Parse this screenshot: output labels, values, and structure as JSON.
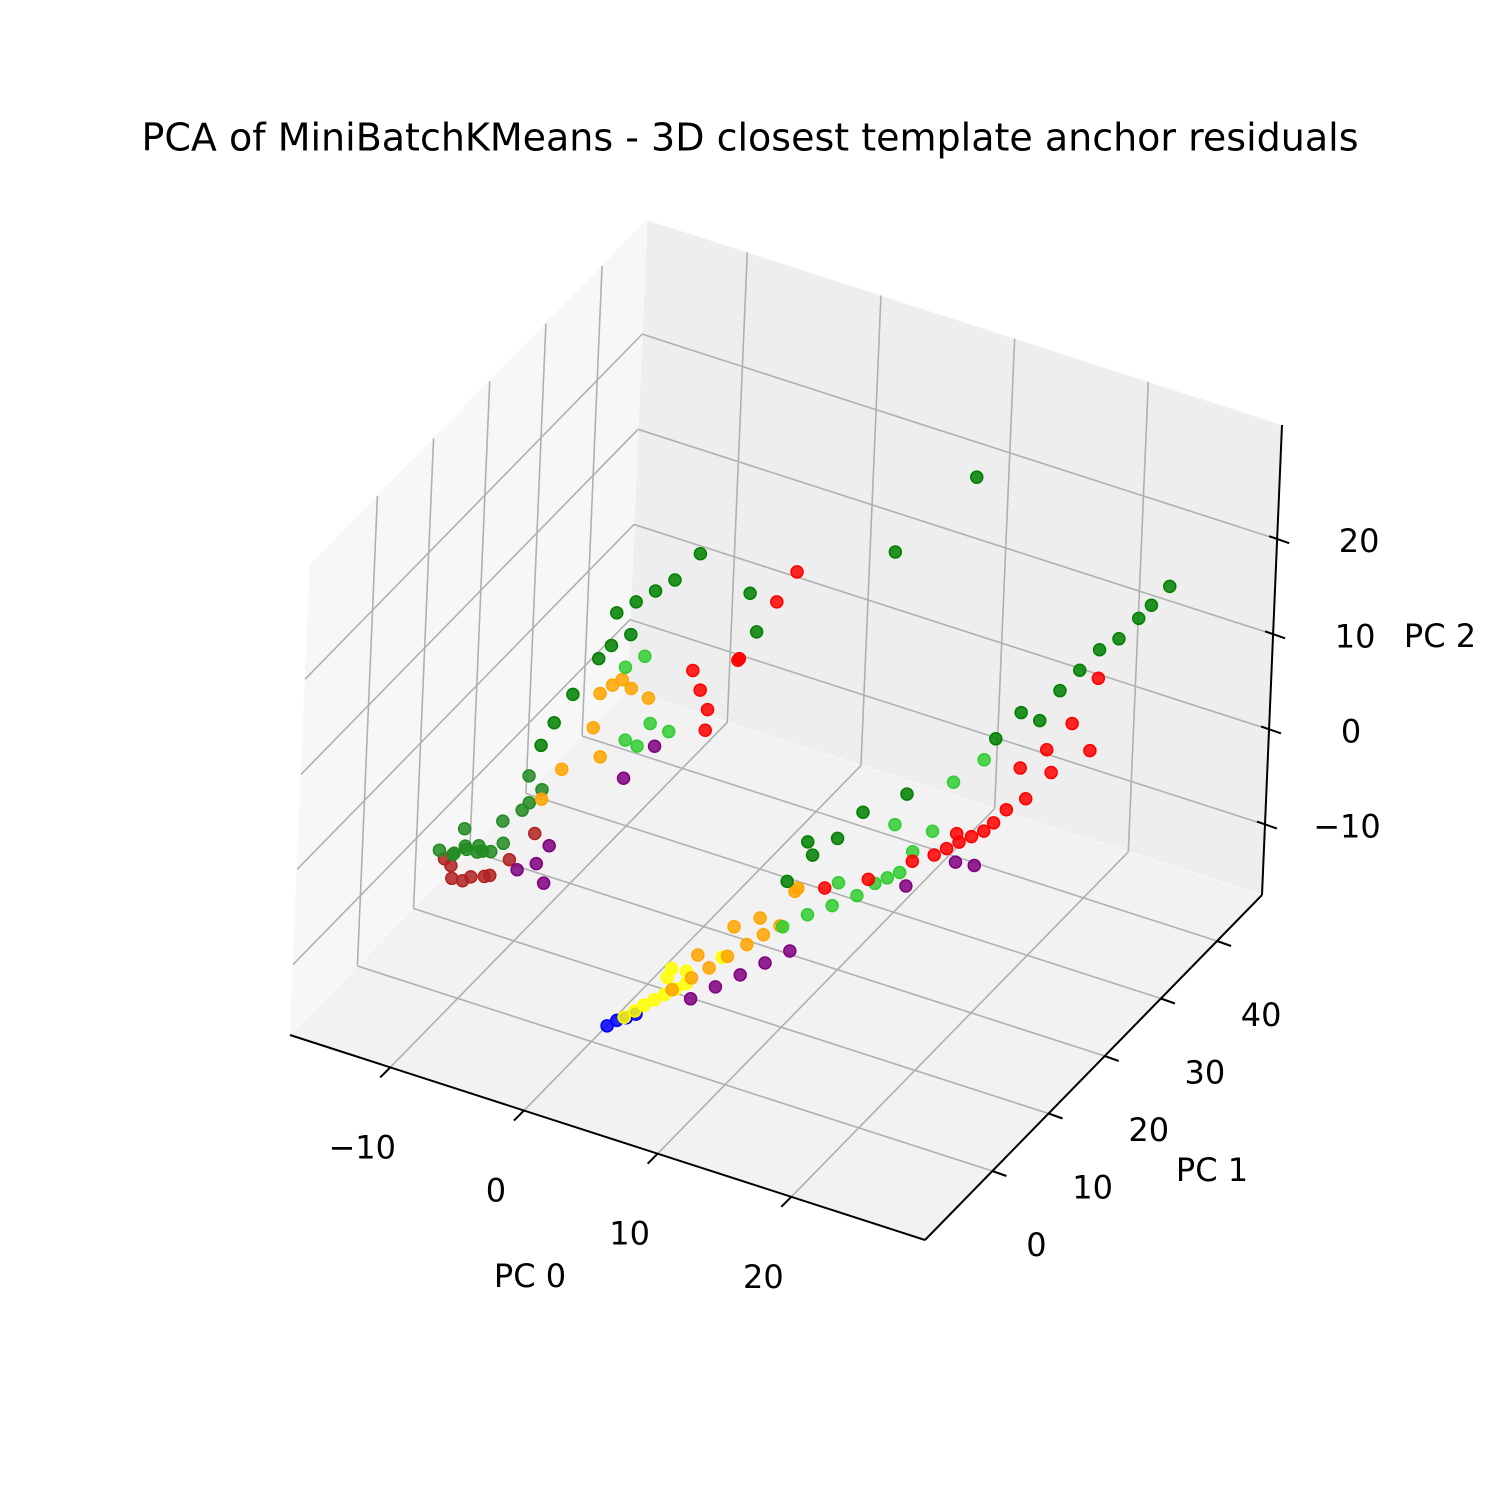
{
  "chart_data": {
    "type": "scatter3d",
    "title": "PCA of MiniBatchKMeans - 3D closest template anchor residuals",
    "x_label": "PC 0",
    "y_label": "PC 1",
    "z_label": "PC 2",
    "xlim": [
      -17.5,
      30
    ],
    "ylim": [
      -12,
      48
    ],
    "zlim": [
      -17.4,
      32
    ],
    "xticks": [
      {
        "value": -10,
        "label": "−10"
      },
      0,
      10,
      20
    ],
    "yticks": [
      0,
      10,
      20,
      30,
      40
    ],
    "zticks": [
      {
        "value": -10,
        "label": "−10"
      },
      0,
      10,
      20
    ],
    "grid": true,
    "series": [
      {
        "color": "firebrick",
        "x": [
          -12,
          -11,
          -10,
          -12.5,
          -11,
          -13,
          -10,
          -9,
          -8
        ],
        "y": [
          3,
          4,
          4,
          4,
          2.5,
          4,
          5,
          6,
          8
        ],
        "z": [
          -7.5,
          -7.5,
          -7,
          -7,
          -7,
          -6.5,
          -7.5,
          -6,
          -4
        ]
      },
      {
        "color": "forestgreen",
        "x": [
          -12,
          -11.5,
          -11,
          -10.5,
          -12.5,
          -10,
          -11,
          -12,
          -9.5,
          -10,
          -9,
          -8,
          -8.5,
          -13,
          -11,
          -9
        ],
        "y": [
          3,
          4,
          5,
          4,
          4.5,
          5,
          3,
          5,
          6,
          7,
          8,
          9,
          8,
          3,
          6,
          9
        ],
        "z": [
          -5,
          -4.5,
          -5.5,
          -4,
          -6,
          -5,
          -4,
          -3.5,
          -4.5,
          -3,
          -2,
          0,
          -1,
          -5,
          -6,
          1
        ]
      },
      {
        "color": "blue",
        "x": [
          2.5,
          3,
          3.5,
          4
        ],
        "y": [
          -3.5,
          -3,
          -2.5,
          -2
        ],
        "z": [
          -12.5,
          -12,
          -11.8,
          -11.5
        ]
      },
      {
        "color": "purple",
        "x": [
          6,
          7,
          8,
          9,
          10,
          14,
          16,
          17,
          -8,
          -7,
          -6,
          -6.5,
          -4,
          -3
        ],
        "y": [
          3,
          5,
          7,
          9,
          11,
          22,
          26,
          27,
          5,
          6,
          5,
          7,
          14,
          17
        ],
        "z": [
          -12,
          -11.5,
          -11,
          -10.5,
          -10,
          -8,
          -7,
          -7.5,
          -6,
          -5.5,
          -6.5,
          -4,
          0,
          2
        ]
      },
      {
        "color": "yellow",
        "x": [
          3.3,
          3.7,
          4.0,
          4.4,
          4.8,
          5.2,
          5.6,
          5,
          6,
          4.5,
          7
        ],
        "y": [
          -2.4,
          -1.5,
          -0.6,
          0.3,
          1.2,
          2.1,
          3,
          1,
          2,
          3,
          6
        ],
        "z": [
          -11.9,
          -11.6,
          -11.4,
          -11.2,
          -11.0,
          -10.8,
          -10.6,
          -9,
          -8.5,
          -9.5,
          -9
        ]
      },
      {
        "color": "orange",
        "x": [
          5.2,
          5.8,
          6.4,
          7,
          7.6,
          8.2,
          8.8,
          6,
          7,
          9,
          10,
          8.5,
          -6,
          -5.5,
          -5,
          -4.5,
          -6,
          -5,
          -7,
          -8,
          -4
        ],
        "y": [
          1.5,
          3.5,
          5.2,
          7,
          9,
          10.5,
          12,
          4,
          8,
          14,
          12,
          9,
          14,
          15,
          15.5,
          16,
          13,
          12,
          10,
          9,
          18
        ],
        "z": [
          -10.5,
          -10.2,
          -9.9,
          -9.5,
          -9.2,
          -8.8,
          -8.5,
          -8,
          -7,
          -6,
          -4,
          -6,
          8,
          8.5,
          9,
          8,
          5,
          3,
          2,
          -1,
          6
        ]
      },
      {
        "color": "limegreen",
        "x": [
          9,
          10,
          11,
          12,
          12.5,
          13,
          13.5,
          11,
          14,
          15,
          16,
          -4,
          -3,
          -2,
          -3.5,
          -5,
          -4,
          13,
          17
        ],
        "y": [
          12,
          14,
          16,
          18,
          20,
          21,
          22,
          17,
          23,
          24,
          25,
          14,
          16,
          17,
          15,
          16,
          17,
          22,
          28
        ],
        "z": [
          -8.5,
          -8,
          -7.8,
          -7.5,
          -7.2,
          -7,
          -6.8,
          -6,
          -5,
          -3,
          2,
          4,
          5,
          4,
          3,
          10,
          11,
          -2,
          3
        ]
      },
      {
        "color": "green",
        "x": [
          18,
          19,
          20,
          21,
          22,
          23,
          24,
          24.5,
          25,
          12,
          9,
          13,
          11,
          10,
          9,
          8,
          9,
          17,
          -5,
          -6,
          -7,
          -5.5,
          -6.5,
          -8,
          -9,
          -8.5,
          -7,
          -4,
          -3,
          0,
          1
        ],
        "y": [
          32,
          33,
          34,
          35,
          36,
          37,
          38,
          39,
          41,
          37,
          30,
          24,
          21,
          19,
          17,
          15,
          16,
          30,
          21,
          20,
          19,
          18,
          17,
          14,
          11,
          12,
          16,
          22,
          24,
          26,
          25
        ],
        "z": [
          6,
          5,
          8,
          10,
          12,
          13,
          15,
          16,
          17,
          25,
          20,
          0,
          -1,
          -3,
          -4,
          -6,
          -2,
          4,
          15,
          14,
          13,
          12,
          11,
          7,
          3,
          5,
          10,
          16,
          18,
          14,
          11
        ]
      },
      {
        "color": "red",
        "x": [
          14,
          15,
          15.5,
          16,
          16.5,
          17,
          17.5,
          16,
          18,
          19,
          20,
          18.5,
          20,
          21,
          22,
          12,
          -1,
          0,
          -2,
          1,
          2,
          3,
          0.5,
          -0.5,
          22,
          10
        ],
        "y": [
          23,
          24.5,
          25.5,
          26.5,
          27.5,
          28.5,
          29,
          26,
          30,
          31,
          33,
          31,
          32,
          34,
          36,
          20,
          20,
          19,
          21,
          22,
          26,
          27,
          23,
          20,
          35,
          17
        ],
        "z": [
          -6,
          -5.8,
          -5.5,
          -5.2,
          -5,
          -4.8,
          -4,
          -4,
          -3,
          -2,
          0,
          1,
          3,
          5,
          9,
          -7,
          7,
          6,
          8,
          10,
          14,
          17,
          9,
          3,
          2,
          -7
        ]
      }
    ]
  }
}
